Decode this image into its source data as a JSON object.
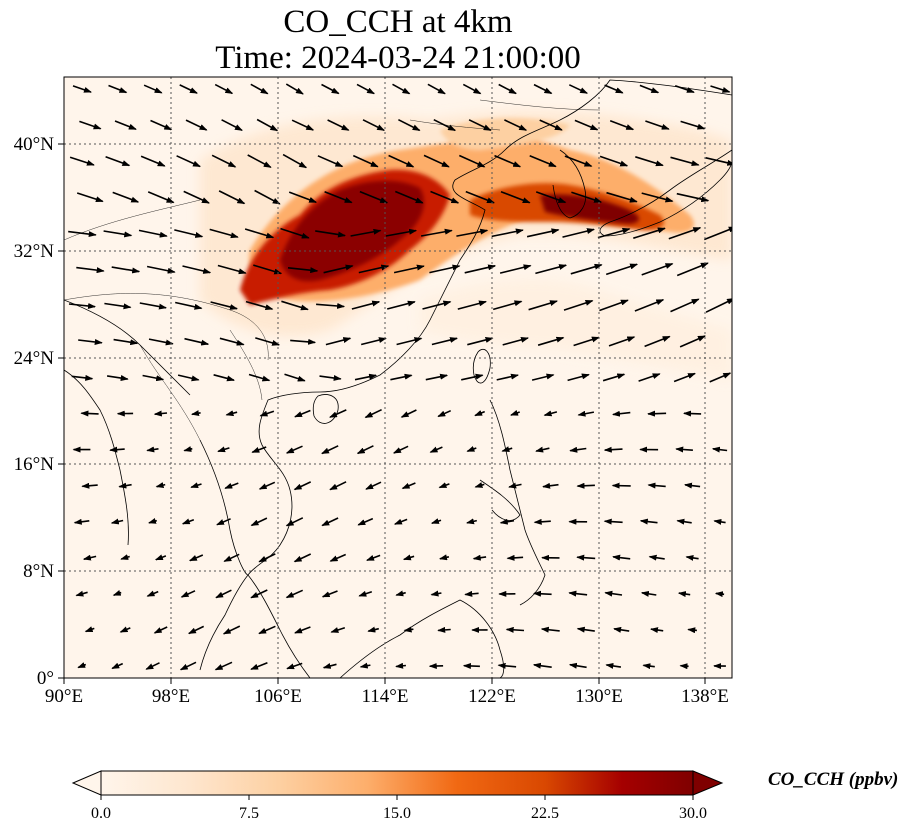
{
  "title": {
    "line1": "CO_CCH at 4km",
    "line2": "Time: 2024-03-24 21:00:00"
  },
  "map": {
    "lon_range": [
      90,
      140
    ],
    "lat_range": [
      0,
      45
    ],
    "x_ticks": [
      "90°E",
      "98°E",
      "106°E",
      "114°E",
      "122°E",
      "130°E",
      "138°E"
    ],
    "y_ticks": [
      "0°",
      "8°N",
      "16°N",
      "24°N",
      "32°N",
      "40°N"
    ],
    "gridlines": true,
    "field": "CO_CCH",
    "wind_vectors": true
  },
  "colorbar": {
    "label": "CO_CCH (ppbv)",
    "ticks": [
      "0.0",
      "7.5",
      "15.0",
      "22.5",
      "30.0"
    ],
    "range": [
      0,
      30
    ],
    "extend": "both",
    "colors": [
      "#fff5eb",
      "#fee6ce",
      "#fdd0a2",
      "#fdae6b",
      "#fd8d3c",
      "#f16913",
      "#d94801",
      "#a63603",
      "#7f0000"
    ]
  }
}
